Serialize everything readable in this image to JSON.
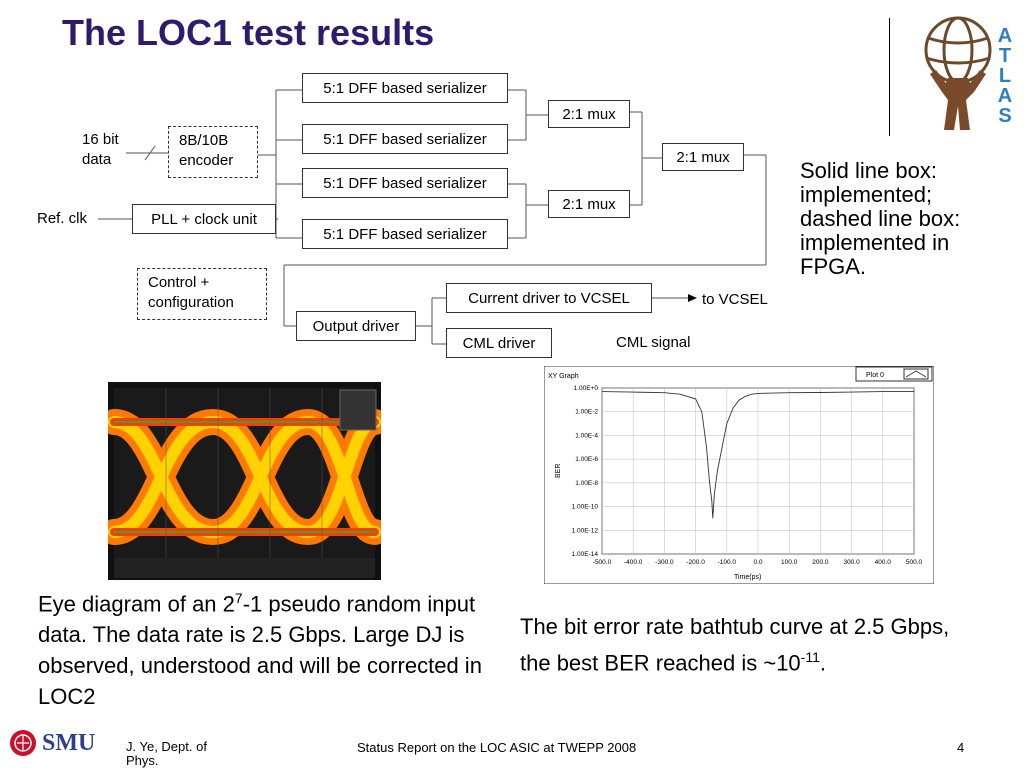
{
  "slide": {
    "title": "The LOC1 test results",
    "page_number": "4"
  },
  "diagram": {
    "input_label": "16 bit data",
    "ref_clk": "Ref. clk",
    "encoder": "8B/10B encoder",
    "pll": "PLL + clock unit",
    "control": "Control + configuration",
    "serializers": [
      "5:1 DFF based serializer",
      "5:1 DFF based serializer",
      "5:1 DFF based serializer",
      "5:1 DFF based serializer"
    ],
    "mux_a": "2:1 mux",
    "mux_b": "2:1 mux",
    "mux_final": "2:1 mux",
    "output_driver": "Output driver",
    "current_driver": "Current driver to VCSEL",
    "cml_driver": "CML driver",
    "to_vcsel": "to VCSEL",
    "cml_signal": "CML signal"
  },
  "legend_note": "Solid line box: implemented; dashed line box: implemented in FPGA.",
  "eye_caption": {
    "part1": "Eye diagram of an 2",
    "sup": "7",
    "part2": "-1 pseudo random input data. The data rate is 2.5 Gbps. Large DJ is observed, understood and will be corrected in LOC2"
  },
  "ber_caption": {
    "part1": "The bit error rate bathtub curve at 2.5 Gbps, the best BER reached is ~10",
    "sup": "-11",
    "part2": "."
  },
  "footer": {
    "logo": "SMU",
    "author": "J. Ye, Dept. of Phys.",
    "center": "Status Report on the LOC ASIC at TWEPP 2008"
  },
  "atlas_letters": [
    "A",
    "T",
    "L",
    "A",
    "S"
  ],
  "colors": {
    "title": "#2e1a6e",
    "atlas": "#2f7fc1",
    "smu_red": "#c8102e",
    "smu_blue": "#2a3f8f"
  },
  "chart_data": {
    "type": "line",
    "title": "XY Graph",
    "legend": "Plot 0",
    "xlabel": "Time(ps)",
    "ylabel": "BER",
    "log_y": true,
    "xlim": [
      -500,
      500
    ],
    "ylim": [
      1e-14,
      1
    ],
    "x_ticks": [
      "-500.0",
      "-400.0",
      "-300.0",
      "-200.0",
      "-100.0",
      "0.0",
      "100.0",
      "200.0",
      "300.0",
      "400.0",
      "500.0"
    ],
    "y_ticks": [
      "1.00E+0",
      "1.00E-2",
      "1.00E-4",
      "1.00E-6",
      "1.00E-8",
      "1.00E-10",
      "1.00E-12",
      "1.00E-14"
    ],
    "x": [
      -500,
      -400,
      -300,
      -250,
      -200,
      -180,
      -165,
      -155,
      -148,
      -145,
      -140,
      -130,
      -115,
      -100,
      -80,
      -60,
      -40,
      -20,
      0,
      100,
      200,
      300,
      400,
      500
    ],
    "y": [
      0.5,
      0.45,
      0.4,
      0.3,
      0.12,
      0.01,
      1e-05,
      1e-08,
      3e-10,
      1e-11,
      1e-09,
      1e-07,
      1e-05,
      0.001,
      0.02,
      0.1,
      0.2,
      0.3,
      0.35,
      0.4,
      0.42,
      0.45,
      0.5,
      0.5
    ]
  }
}
